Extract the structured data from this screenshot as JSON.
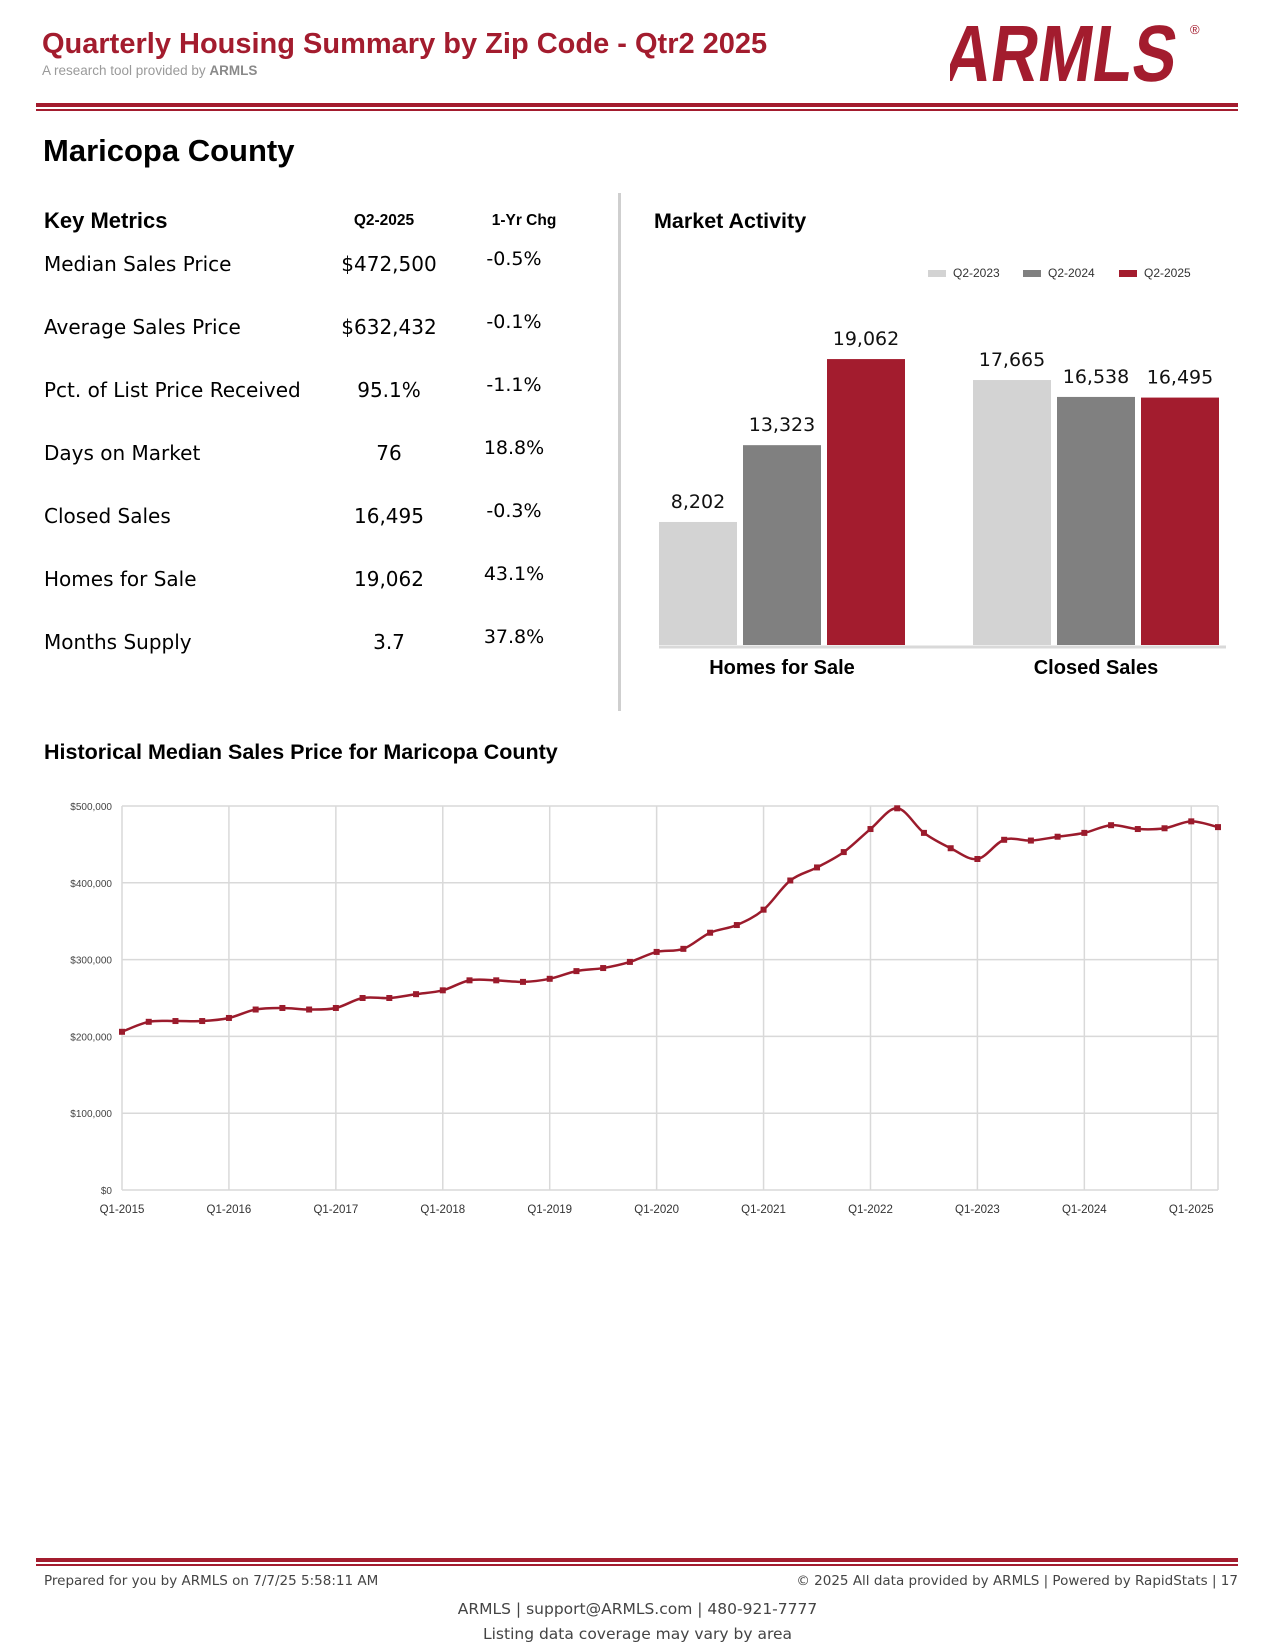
{
  "header": {
    "title": "Quarterly Housing Summary by Zip Code - Qtr2 2025",
    "subtitle_prefix": "A research tool provided by",
    "subtitle_brand": "ARMLS",
    "logo_text": "ARMLS",
    "logo_mark": "®"
  },
  "area": {
    "name": "Maricopa County"
  },
  "key_metrics": {
    "heading": "Key Metrics",
    "col_current": "Q2-2025",
    "col_change": "1-Yr Chg",
    "rows": [
      {
        "label": "Median Sales Price",
        "value": "$472,500",
        "change": "-0.5%"
      },
      {
        "label": "Average Sales Price",
        "value": "$632,432",
        "change": "-0.1%"
      },
      {
        "label": "Pct. of List Price Received",
        "value": "95.1%",
        "change": "-1.1%"
      },
      {
        "label": "Days on Market",
        "value": "76",
        "change": "18.8%"
      },
      {
        "label": "Closed Sales",
        "value": "16,495",
        "change": "-0.3%"
      },
      {
        "label": "Homes for Sale",
        "value": "19,062",
        "change": "43.1%"
      },
      {
        "label": "Months Supply",
        "value": "3.7",
        "change": "37.8%"
      }
    ]
  },
  "colors": {
    "brand_red": "#a31c2e",
    "q2_2023": "#d3d3d3",
    "q2_2024": "#808080",
    "q2_2025": "#a31c2e",
    "grid": "#d9d9d9",
    "line": "#9b1b2c"
  },
  "chart_data": [
    {
      "type": "bar",
      "title": "Market Activity",
      "categories": [
        "Homes for Sale",
        "Closed Sales"
      ],
      "series": [
        {
          "name": "Q2-2023",
          "values": [
            8202,
            17665
          ],
          "labels": [
            "8,202",
            "17,665"
          ]
        },
        {
          "name": "Q2-2024",
          "values": [
            13323,
            16538
          ],
          "labels": [
            "13,323",
            "16,538"
          ]
        },
        {
          "name": "Q2-2025",
          "values": [
            19062,
            16495
          ],
          "labels": [
            "19,062",
            "16,495"
          ]
        }
      ],
      "legend": "top-right",
      "ylim": [
        0,
        20000
      ]
    },
    {
      "type": "line",
      "title": "Historical Median Sales Price for Maricopa County",
      "series_name": "",
      "x_start": "Q1-2015",
      "x": [
        "Q1-2015",
        "Q2-2015",
        "Q3-2015",
        "Q4-2015",
        "Q1-2016",
        "Q2-2016",
        "Q3-2016",
        "Q4-2016",
        "Q1-2017",
        "Q2-2017",
        "Q3-2017",
        "Q4-2017",
        "Q1-2018",
        "Q2-2018",
        "Q3-2018",
        "Q4-2018",
        "Q1-2019",
        "Q2-2019",
        "Q3-2019",
        "Q4-2019",
        "Q1-2020",
        "Q2-2020",
        "Q3-2020",
        "Q4-2020",
        "Q1-2021",
        "Q2-2021",
        "Q3-2021",
        "Q4-2021",
        "Q1-2022",
        "Q2-2022",
        "Q3-2022",
        "Q4-2022",
        "Q1-2023",
        "Q2-2023",
        "Q3-2023",
        "Q4-2023",
        "Q1-2024",
        "Q2-2024",
        "Q3-2024",
        "Q4-2024",
        "Q1-2025",
        "Q2-2025"
      ],
      "values": [
        206000,
        219000,
        220000,
        220000,
        224000,
        235000,
        237000,
        235000,
        237000,
        250000,
        250000,
        255000,
        260000,
        273000,
        273000,
        271000,
        275000,
        285000,
        289000,
        297000,
        310000,
        314000,
        335000,
        345000,
        365000,
        403000,
        420000,
        440000,
        470000,
        497000,
        465000,
        445000,
        431000,
        456000,
        455000,
        460000,
        465000,
        475000,
        470000,
        471000,
        480000,
        472500
      ],
      "x_tick_labels": [
        "Q1-2015",
        "Q1-2016",
        "Q1-2017",
        "Q1-2018",
        "Q1-2019",
        "Q1-2020",
        "Q1-2021",
        "Q1-2022",
        "Q1-2023",
        "Q1-2024",
        "Q1-2025"
      ],
      "y_tick_labels": [
        "$0",
        "$100,000",
        "$200,000",
        "$300,000",
        "$400,000",
        "$500,000"
      ],
      "ylim": [
        0,
        500000
      ],
      "grid": true
    }
  ],
  "footer": {
    "prepared": "Prepared for you by ARMLS on 7/7/25 5:58:11 AM",
    "copyright": "© 2025 All data provided by ARMLS | Powered by RapidStats  | 17",
    "contact": "ARMLS | support@ARMLS.com | 480-921-7777",
    "note": "Listing data coverage may vary by area"
  }
}
